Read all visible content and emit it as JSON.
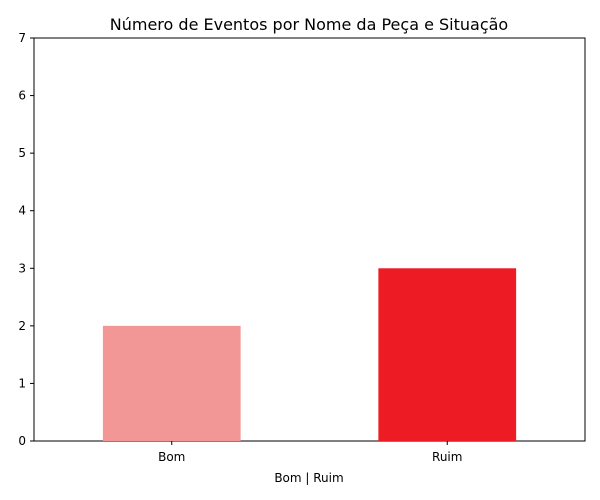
{
  "chart_data": {
    "type": "bar",
    "title": "Número de Eventos por Nome da Peça e Situação",
    "xlabel": "Bom | Ruim",
    "ylabel": "",
    "categories": [
      "Bom",
      "Ruim"
    ],
    "values": [
      2,
      3
    ],
    "colors": [
      "#f29696",
      "#ed1c24"
    ],
    "ylim": [
      0,
      7
    ],
    "yticks": [
      0,
      1,
      2,
      3,
      4,
      5,
      6,
      7
    ],
    "grid": false,
    "legend": false
  }
}
